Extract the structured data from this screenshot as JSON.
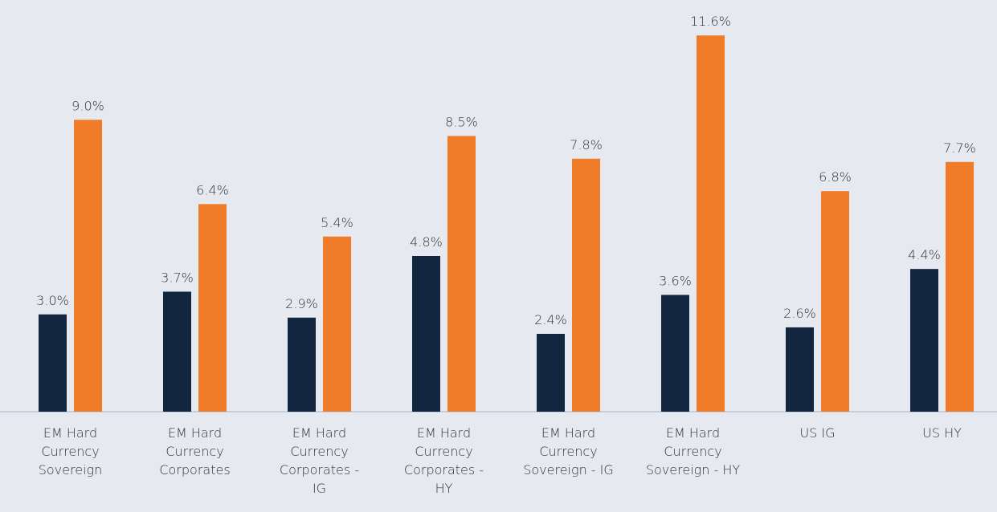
{
  "chart_data": {
    "type": "bar",
    "categories": [
      "EM Hard Currency Sovereign",
      "EM Hard Currency Corporates",
      "EM Hard Currency Corporates - IG",
      "EM Hard Currency Corporates - HY",
      "EM Hard Currency Sovereign - IG",
      "EM Hard Currency Sovereign - HY",
      "US IG",
      "US HY"
    ],
    "series": [
      {
        "color": "#13263f",
        "values": [
          3.0,
          3.7,
          2.9,
          4.8,
          2.4,
          3.6,
          2.6,
          4.4
        ],
        "value_labels": [
          "3.0%",
          "3.7%",
          "2.9%",
          "4.8%",
          "2.4%",
          "3.6%",
          "2.6%",
          "4.4%"
        ]
      },
      {
        "color": "#f07c2a",
        "values": [
          9.0,
          6.4,
          5.4,
          8.5,
          7.8,
          11.6,
          6.8,
          7.7
        ],
        "value_labels": [
          "9.0%",
          "6.4%",
          "5.4%",
          "8.5%",
          "7.8%",
          "11.6%",
          "6.8%",
          "7.7%"
        ]
      }
    ],
    "ylim": [
      0,
      12
    ]
  }
}
